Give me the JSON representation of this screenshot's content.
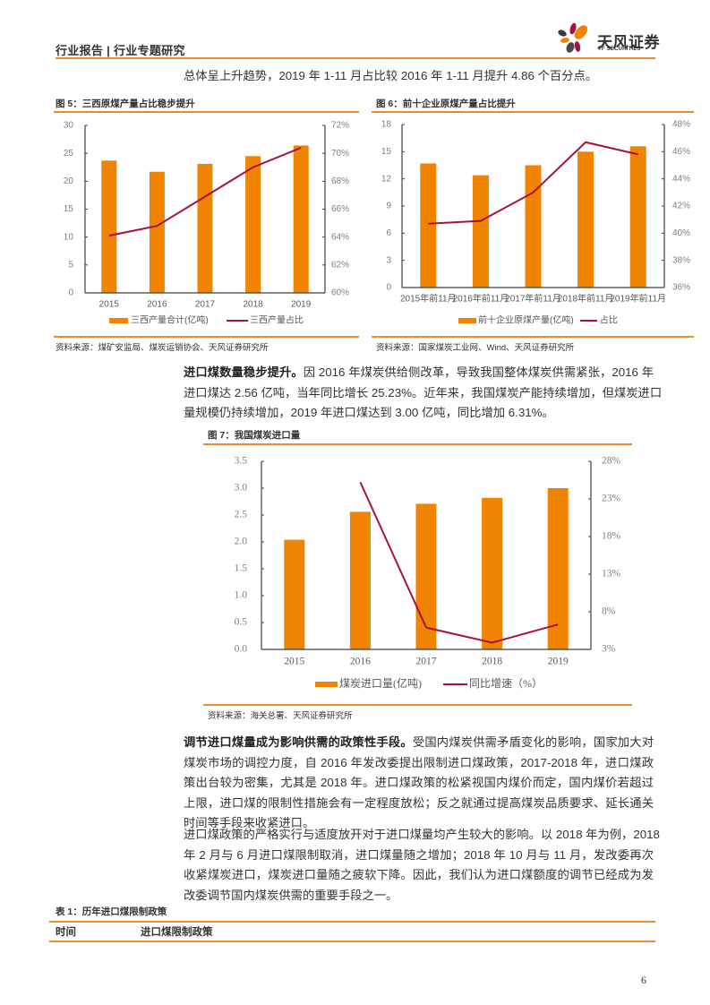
{
  "header": {
    "title": "行业报告 | 行业专题研究",
    "logo_cn": "天风证券",
    "logo_en": "TF SECURITIES"
  },
  "intro_line": "总体呈上升趋势，2019 年 1-11 月占比较 2016 年 1-11 月提升 4.86 个百分点。",
  "figures": [
    {
      "title": "图 5：三西原煤产量占比稳步提升",
      "source": "资料来源：煤矿安监局、煤炭运销协会、天风证券研究所"
    },
    {
      "title": "图 6：前十企业原煤产量占比提升",
      "source": "资料来源：国家煤炭工业网、Wind、天风证券研究所"
    },
    {
      "title": "图 7：我国煤炭进口量",
      "source": "资料来源：海关总署、天风证券研究所"
    }
  ],
  "paragraph_1": {
    "lead": "进口煤数量稳步提升。",
    "lines": [
      "因 2016 年煤炭供给侧改革，导致我国整体煤炭供需紧张，2016 年",
      "进口煤达 2.56 亿吨，当年同比增长 25.23%。近年来，我国煤炭产能持续增加，但煤炭进口",
      "量规模仍持续增加，2019 年进口煤达到 3.00 亿吨，同比增加 6.31%。"
    ]
  },
  "paragraph_2": {
    "lead": "调节进口煤量成为影响供需的政策性手段。",
    "lines": [
      "受国内煤炭供需矛盾变化的影响，国家加大对",
      "煤炭市场的调控力度，自 2016 年发改委提出限制进口煤政策，2017-2018 年，进口煤政",
      "策出台较为密集，尤其是 2018 年。进口煤政策的松紧视国内煤价而定，国内煤价若超过",
      "上限，进口煤的限制性措施会有一定程度放松；反之就通过提高煤炭品质要求、延长通关",
      "时间等手段来收紧进口。"
    ]
  },
  "paragraph_3": {
    "lines": [
      "进口煤政策的严格实行与适度放开对于进口煤量均产生较大的影响。以 2018 年为例，2018",
      "年 2 月与 6 月进口煤限制取消，进口煤量随之增加；2018 年 10 月与 11 月，发改委再次",
      "收紧煤炭进口，煤炭进口量随之疲软下降。因此，我们认为进口煤额度的调节已经成为发",
      "改委调节国内煤炭供需的重要手段之一。"
    ]
  },
  "table_1": {
    "title": "表 1：历年进口煤限制政策",
    "columns": [
      "时间",
      "进口煤限制政策"
    ]
  },
  "page_number": "6",
  "colors": {
    "accent_rule": "#EC8A2E",
    "bar": "#F08300",
    "line": "#A6113F"
  },
  "chart_data": [
    {
      "type": "bar+line",
      "title": "图 5：三西原煤产量占比稳步提升",
      "categories": [
        "2015",
        "2016",
        "2017",
        "2018",
        "2019"
      ],
      "series": [
        {
          "name": "三西产量合计(亿吨)",
          "type": "bar",
          "axis": "left",
          "values": [
            23.7,
            21.7,
            23.1,
            24.5,
            26.4
          ]
        },
        {
          "name": "三西产量占比",
          "type": "line",
          "axis": "right",
          "values": [
            64.1,
            64.8,
            66.9,
            69.0,
            70.4
          ]
        }
      ],
      "y_left": {
        "min": 0,
        "max": 30,
        "ticks": [
          0,
          5,
          10,
          15,
          20,
          25,
          30
        ],
        "tick_labels": [
          "0",
          "5",
          "10",
          "15",
          "20",
          "25",
          "30"
        ]
      },
      "y_right": {
        "min": 60,
        "max": 72,
        "ticks": [
          60,
          62,
          64,
          66,
          68,
          70,
          72
        ],
        "tick_labels": [
          "60%",
          "62%",
          "64%",
          "66%",
          "68%",
          "70%",
          "72%"
        ]
      },
      "legend": [
        "三西产量合计(亿吨)",
        "三西产量占比"
      ],
      "legend_position": "bottom",
      "grid": false,
      "xlabel": "",
      "ylabel": ""
    },
    {
      "type": "bar+line",
      "title": "图 6：前十企业原煤产量占比提升",
      "categories": [
        "2015年前11月",
        "2016年前11月",
        "2017年前11月",
        "2018年前11月",
        "2019年前11月"
      ],
      "series": [
        {
          "name": "前十企业原煤产量(亿吨)",
          "type": "bar",
          "axis": "left",
          "values": [
            13.7,
            12.4,
            13.5,
            15.0,
            15.6
          ]
        },
        {
          "name": "占比",
          "type": "line",
          "axis": "right",
          "values": [
            40.7,
            40.9,
            43.0,
            46.7,
            45.8
          ]
        }
      ],
      "y_left": {
        "min": 0,
        "max": 18,
        "ticks": [
          0,
          3,
          6,
          9,
          12,
          15,
          18
        ],
        "tick_labels": [
          "0",
          "3",
          "6",
          "9",
          "12",
          "15",
          "18"
        ]
      },
      "y_right": {
        "min": 36,
        "max": 48,
        "ticks": [
          36,
          38,
          40,
          42,
          44,
          46,
          48
        ],
        "tick_labels": [
          "36%",
          "38%",
          "40%",
          "42%",
          "44%",
          "46%",
          "48%"
        ]
      },
      "legend": [
        "前十企业原煤产量(亿吨)",
        "占比"
      ],
      "legend_position": "bottom",
      "grid": false,
      "xlabel": "",
      "ylabel": ""
    },
    {
      "type": "bar+line",
      "title": "图 7：我国煤炭进口量",
      "categories": [
        "2015",
        "2016",
        "2017",
        "2018",
        "2019"
      ],
      "series": [
        {
          "name": "煤炭进口量(亿吨)",
          "type": "bar",
          "axis": "left",
          "values": [
            2.04,
            2.56,
            2.71,
            2.82,
            3.0
          ]
        },
        {
          "name": "同比增速（%）",
          "type": "line",
          "axis": "right",
          "values": [
            null,
            25.23,
            5.9,
            3.9,
            6.31
          ]
        }
      ],
      "y_left": {
        "min": 0,
        "max": 3.5,
        "ticks": [
          0,
          0.5,
          1,
          1.5,
          2,
          2.5,
          3,
          3.5
        ],
        "tick_labels": [
          "0.0",
          "0.5",
          "1.0",
          "1.5",
          "2.0",
          "2.5",
          "3.0",
          "3.5"
        ]
      },
      "y_right": {
        "min": 3,
        "max": 28,
        "ticks": [
          3,
          8,
          13,
          18,
          23,
          28
        ],
        "tick_labels": [
          "3%",
          "8%",
          "13%",
          "18%",
          "23%",
          "28%"
        ]
      },
      "legend": [
        "煤炭进口量(亿吨)",
        "同比增速（%）"
      ],
      "legend_position": "bottom",
      "grid": false,
      "xlabel": "",
      "ylabel": ""
    }
  ]
}
